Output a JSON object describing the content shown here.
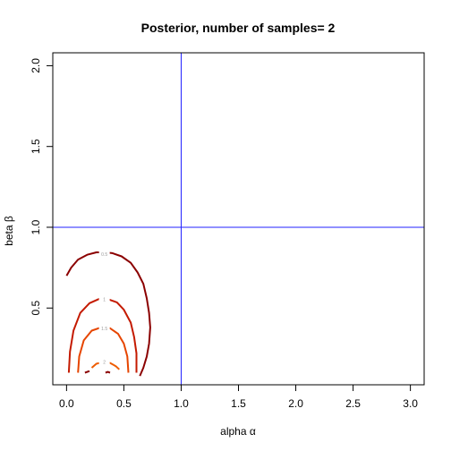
{
  "chart_data": {
    "type": "contour",
    "title": "Posterior, number of samples= 2",
    "xlabel": "alpha α",
    "ylabel": "beta β",
    "xlim": [
      -0.12,
      3.12
    ],
    "ylim": [
      0.025,
      2.08
    ],
    "x_ticks": [
      0.0,
      0.5,
      1.0,
      1.5,
      2.0,
      2.5,
      3.0
    ],
    "x_tick_labels": [
      "0.0",
      "0.5",
      "1.0",
      "1.5",
      "2.0",
      "2.5",
      "3.0"
    ],
    "y_ticks": [
      0.5,
      1.0,
      1.5,
      2.0
    ],
    "y_tick_labels": [
      "0.5",
      "1.0",
      "1.5",
      "2.0"
    ],
    "grid": false,
    "legend": "none",
    "reference_lines": {
      "vertical_x": 1.0,
      "horizontal_y": 1.0,
      "color": "#2020ff"
    },
    "contours": [
      {
        "level": "0.5",
        "color": "#8b0000",
        "label_at": [
          0.33,
          0.835
        ],
        "points": [
          [
            0.0,
            0.7
          ],
          [
            0.04,
            0.75
          ],
          [
            0.1,
            0.8
          ],
          [
            0.18,
            0.83
          ],
          [
            0.26,
            0.845
          ],
          [
            0.33,
            0.845
          ],
          [
            0.4,
            0.84
          ],
          [
            0.48,
            0.82
          ],
          [
            0.56,
            0.78
          ],
          [
            0.62,
            0.72
          ],
          [
            0.67,
            0.65
          ],
          [
            0.7,
            0.56
          ],
          [
            0.72,
            0.47
          ],
          [
            0.73,
            0.38
          ],
          [
            0.72,
            0.28
          ],
          [
            0.7,
            0.2
          ],
          [
            0.67,
            0.13
          ],
          [
            0.64,
            0.08
          ]
        ]
      },
      {
        "level": "1",
        "color": "#c41a00",
        "label_at": [
          0.33,
          0.555
        ],
        "points": [
          [
            0.02,
            0.1
          ],
          [
            0.03,
            0.23
          ],
          [
            0.06,
            0.36
          ],
          [
            0.12,
            0.47
          ],
          [
            0.2,
            0.53
          ],
          [
            0.28,
            0.555
          ],
          [
            0.36,
            0.555
          ],
          [
            0.44,
            0.535
          ],
          [
            0.5,
            0.49
          ],
          [
            0.56,
            0.41
          ],
          [
            0.59,
            0.32
          ],
          [
            0.61,
            0.22
          ],
          [
            0.61,
            0.1
          ]
        ]
      },
      {
        "level": "1.5",
        "color": "#e64500",
        "label_at": [
          0.33,
          0.375
        ],
        "points": [
          [
            0.1,
            0.1
          ],
          [
            0.11,
            0.2
          ],
          [
            0.15,
            0.3
          ],
          [
            0.22,
            0.36
          ],
          [
            0.3,
            0.38
          ],
          [
            0.38,
            0.375
          ],
          [
            0.45,
            0.34
          ],
          [
            0.5,
            0.28
          ],
          [
            0.53,
            0.2
          ],
          [
            0.54,
            0.1
          ]
        ]
      },
      {
        "level": "2",
        "color": "#ee5c00",
        "label_at": [
          0.33,
          0.165
        ],
        "points": [
          [
            0.22,
            0.13
          ],
          [
            0.26,
            0.155
          ],
          [
            0.32,
            0.165
          ],
          [
            0.38,
            0.16
          ],
          [
            0.43,
            0.14
          ],
          [
            0.46,
            0.12
          ]
        ]
      },
      {
        "level": "",
        "color": "#8b0000",
        "label_at": null,
        "points": [
          [
            0.16,
            0.1
          ],
          [
            0.2,
            0.11
          ]
        ]
      },
      {
        "level": "",
        "color": "#8b0000",
        "label_at": null,
        "points": [
          [
            0.34,
            0.1
          ],
          [
            0.36,
            0.105
          ],
          [
            0.38,
            0.1
          ]
        ]
      }
    ]
  }
}
